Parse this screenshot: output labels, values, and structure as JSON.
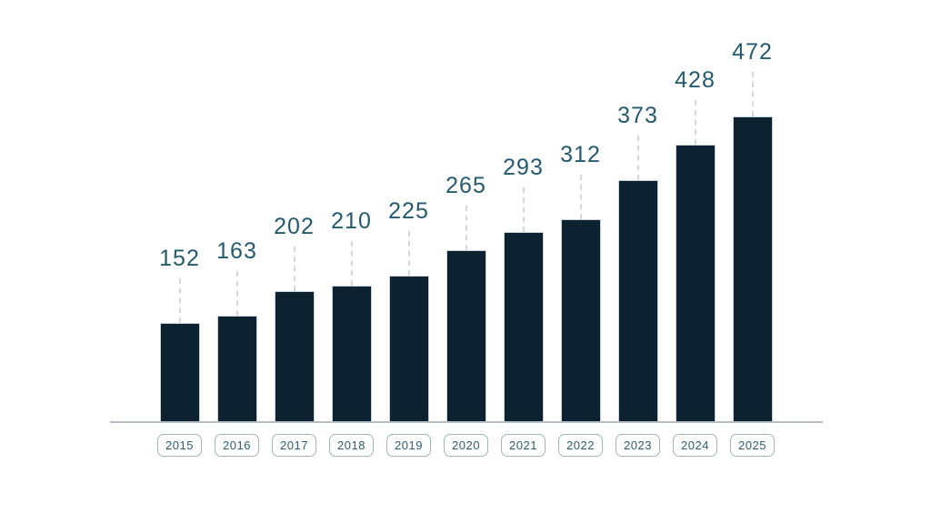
{
  "chart_data": {
    "type": "bar",
    "title": "",
    "xlabel": "",
    "ylabel": "",
    "categories": [
      "2015",
      "2016",
      "2017",
      "2018",
      "2019",
      "2020",
      "2021",
      "2022",
      "2023",
      "2024",
      "2025"
    ],
    "values": [
      152,
      163,
      202,
      210,
      225,
      265,
      293,
      312,
      373,
      428,
      472
    ],
    "ylim": [
      0,
      500
    ],
    "grid": false,
    "legend": null,
    "data_labels_shown": true,
    "colors": {
      "bar_fill": "#0c2231",
      "bar_outline": "#c9d2d8",
      "value_label": "#235a70",
      "leader_line": "#d3d8dc",
      "axis_line": "#b5bfc9",
      "tick_text": "#2d5d73",
      "tick_border": "#a3b5bf",
      "background": "#ffffff"
    }
  }
}
